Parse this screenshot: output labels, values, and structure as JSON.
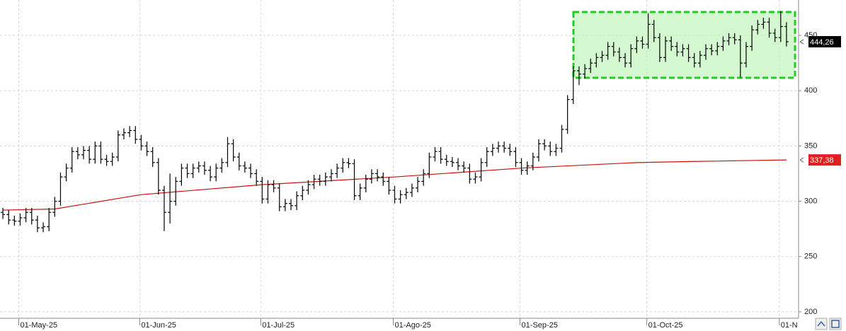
{
  "chart_data": {
    "type": "ohlc",
    "color": "#000000",
    "categories": [
      null,
      null,
      null,
      "01-May-25",
      null,
      null,
      null,
      null,
      null,
      null,
      null,
      null,
      null,
      null,
      null,
      null,
      null,
      null,
      null,
      null,
      null,
      null,
      null,
      null,
      "01-Jun-25",
      null,
      null,
      null,
      null,
      null,
      null,
      null,
      null,
      null,
      null,
      null,
      null,
      null,
      null,
      null,
      null,
      null,
      null,
      null,
      null,
      "01-Jul-25",
      null,
      null,
      null,
      null,
      null,
      null,
      null,
      null,
      null,
      null,
      null,
      null,
      null,
      null,
      null,
      null,
      null,
      null,
      null,
      null,
      null,
      null,
      "01-Ago-25",
      null,
      null,
      null,
      null,
      null,
      null,
      null,
      null,
      null,
      null,
      null,
      null,
      null,
      null,
      null,
      null,
      null,
      null,
      null,
      null,
      null,
      "01-Sep-25",
      null,
      null,
      null,
      null,
      null,
      null,
      null,
      null,
      null,
      null,
      null,
      null,
      null,
      null,
      null,
      null,
      null,
      null,
      null,
      null,
      null,
      "01-Oct-25",
      null,
      null,
      null,
      null,
      null,
      null,
      null,
      null,
      null,
      null,
      null,
      null,
      null,
      null,
      null,
      null,
      null,
      null,
      null,
      null,
      null,
      null,
      "01-N",
      null
    ],
    "open": [
      290,
      288,
      283,
      282,
      285,
      290,
      283,
      276,
      277,
      290,
      300,
      322,
      330,
      345,
      342,
      346,
      338,
      350,
      338,
      336,
      340,
      360,
      362,
      364,
      356,
      350,
      345,
      335,
      310,
      290,
      300,
      318,
      330,
      325,
      330,
      332,
      328,
      322,
      330,
      335,
      352,
      340,
      332,
      330,
      325,
      318,
      302,
      315,
      312,
      295,
      298,
      296,
      305,
      310,
      315,
      320,
      318,
      322,
      325,
      330,
      335,
      334,
      305,
      312,
      320,
      325,
      322,
      318,
      310,
      302,
      306,
      308,
      312,
      318,
      325,
      340,
      345,
      338,
      336,
      335,
      332,
      330,
      320,
      322,
      335,
      345,
      348,
      350,
      348,
      345,
      335,
      328,
      332,
      340,
      352,
      350,
      345,
      348,
      365,
      392,
      418,
      415,
      420,
      425,
      430,
      432,
      440,
      435,
      430,
      425,
      438,
      445,
      442,
      460,
      448,
      430,
      445,
      440,
      435,
      438,
      430,
      425,
      432,
      438,
      436,
      440,
      445,
      448,
      446,
      425,
      440,
      455,
      460,
      462,
      452,
      448,
      458
    ],
    "high": [
      294,
      292,
      287,
      289,
      294,
      294,
      287,
      281,
      294,
      304,
      326,
      334,
      349,
      349,
      350,
      350,
      354,
      354,
      342,
      344,
      364,
      366,
      368,
      368,
      360,
      354,
      349,
      339,
      314,
      325,
      322,
      334,
      334,
      334,
      336,
      336,
      332,
      334,
      339,
      358,
      356,
      344,
      336,
      334,
      329,
      322,
      319,
      319,
      316,
      302,
      302,
      309,
      314,
      319,
      324,
      324,
      326,
      329,
      334,
      339,
      339,
      338,
      316,
      324,
      329,
      329,
      326,
      322,
      314,
      310,
      312,
      316,
      322,
      329,
      344,
      349,
      349,
      342,
      340,
      339,
      336,
      334,
      326,
      339,
      349,
      352,
      354,
      354,
      352,
      349,
      339,
      336,
      344,
      356,
      356,
      354,
      352,
      369,
      396,
      422,
      422,
      424,
      429,
      434,
      436,
      444,
      444,
      439,
      434,
      442,
      449,
      449,
      470,
      464,
      452,
      449,
      449,
      444,
      442,
      442,
      434,
      436,
      442,
      442,
      444,
      449,
      452,
      452,
      450,
      444,
      459,
      464,
      466,
      466,
      456,
      472,
      462
    ],
    "low": [
      284,
      279,
      278,
      278,
      281,
      279,
      272,
      272,
      273,
      286,
      296,
      318,
      326,
      338,
      338,
      334,
      334,
      334,
      332,
      332,
      336,
      356,
      358,
      352,
      346,
      341,
      331,
      306,
      273,
      280,
      296,
      314,
      321,
      321,
      326,
      324,
      318,
      318,
      326,
      331,
      336,
      328,
      326,
      321,
      314,
      298,
      298,
      308,
      291,
      291,
      292,
      292,
      301,
      306,
      311,
      314,
      314,
      318,
      321,
      326,
      330,
      301,
      301,
      308,
      316,
      318,
      314,
      306,
      298,
      298,
      302,
      304,
      308,
      314,
      321,
      336,
      334,
      332,
      331,
      328,
      326,
      316,
      316,
      318,
      331,
      341,
      344,
      344,
      341,
      331,
      324,
      324,
      328,
      336,
      346,
      341,
      341,
      344,
      361,
      388,
      405,
      411,
      416,
      421,
      426,
      428,
      431,
      426,
      421,
      421,
      434,
      438,
      438,
      444,
      426,
      426,
      436,
      431,
      431,
      426,
      421,
      421,
      428,
      432,
      432,
      436,
      441,
      442,
      412,
      421,
      436,
      451,
      456,
      448,
      444,
      444,
      440
    ],
    "close": [
      288,
      283,
      282,
      285,
      290,
      283,
      276,
      277,
      290,
      300,
      322,
      330,
      345,
      342,
      346,
      338,
      350,
      338,
      336,
      340,
      360,
      362,
      364,
      356,
      350,
      345,
      335,
      310,
      290,
      300,
      318,
      330,
      325,
      330,
      332,
      328,
      322,
      330,
      335,
      352,
      340,
      332,
      330,
      325,
      318,
      302,
      315,
      312,
      295,
      298,
      296,
      305,
      310,
      315,
      320,
      318,
      322,
      325,
      330,
      335,
      334,
      305,
      312,
      320,
      325,
      322,
      318,
      310,
      302,
      306,
      308,
      312,
      318,
      325,
      340,
      345,
      338,
      336,
      335,
      332,
      330,
      320,
      322,
      335,
      345,
      348,
      350,
      348,
      345,
      335,
      328,
      332,
      340,
      352,
      350,
      345,
      348,
      365,
      392,
      418,
      415,
      420,
      425,
      430,
      432,
      440,
      435,
      430,
      425,
      438,
      445,
      442,
      460,
      448,
      430,
      445,
      440,
      435,
      438,
      430,
      425,
      432,
      438,
      436,
      440,
      445,
      448,
      446,
      425,
      440,
      455,
      460,
      462,
      452,
      448,
      458,
      444.26
    ],
    "lines": [
      {
        "color": "#cc1111",
        "x": [
          0,
          9,
          24,
          45,
          68,
          90,
          110,
          120,
          136
        ],
        "values": [
          292,
          293,
          306,
          315,
          322,
          330,
          335,
          336,
          337.38
        ]
      }
    ],
    "price_labels": [
      {
        "label": "444,26",
        "value": 444.26,
        "color": "#000000"
      },
      {
        "label": "337,38",
        "value": 337.38,
        "color": "#e02020"
      }
    ],
    "ylim": [
      194.2,
      482
    ],
    "yticks": [
      200,
      250,
      300,
      350,
      400,
      450
    ],
    "grid": true
  }
}
